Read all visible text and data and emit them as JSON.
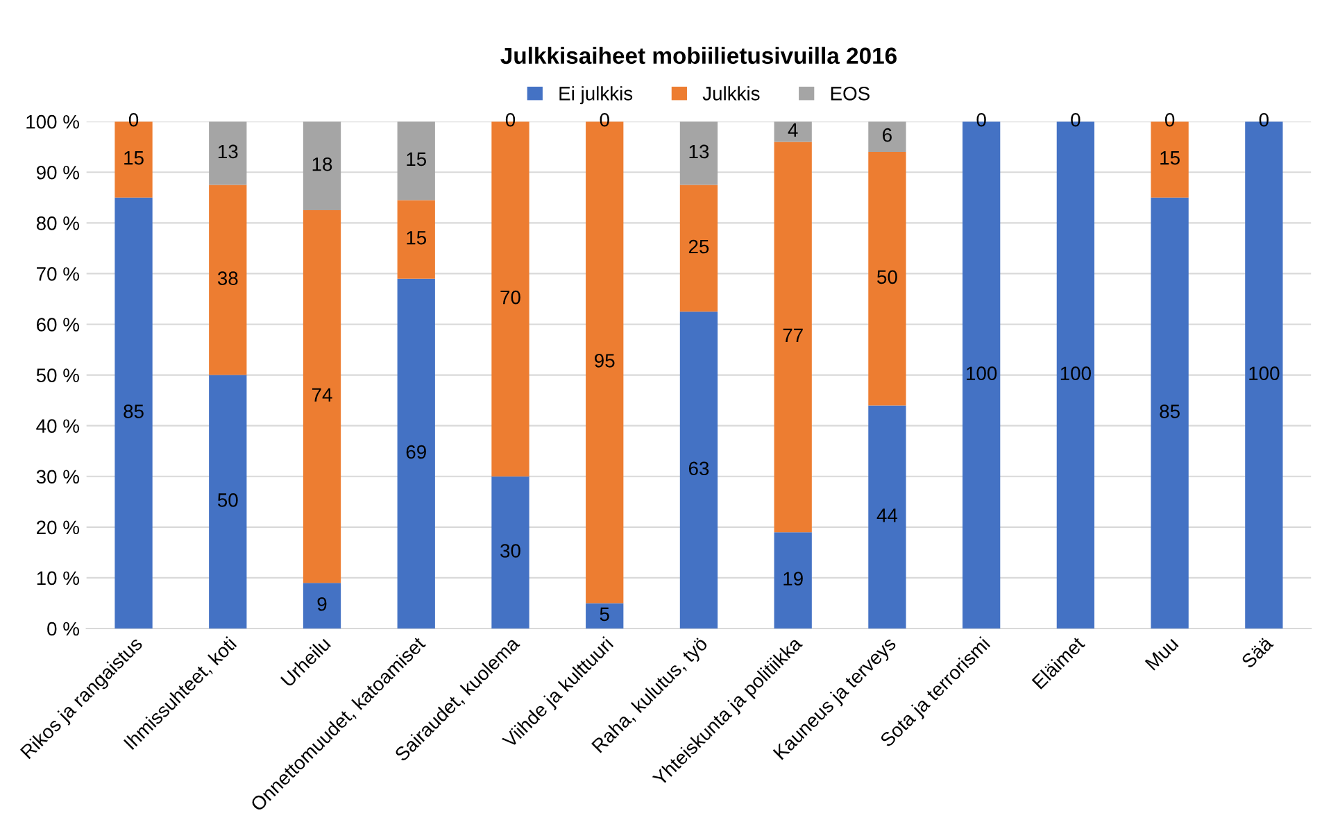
{
  "chart_data": {
    "type": "bar",
    "stacked": true,
    "title": "Julkkisaiheet mobiilietusivuilla 2016",
    "categories": [
      "Rikos ja rangaistus",
      "Ihmissuhteet, koti",
      "Urheilu",
      "Onnettomuudet, katoamiset",
      "Sairaudet, kuolema",
      "Viihde ja kulttuuri",
      "Raha, kulutus, työ",
      "Yhteiskunta ja politiikka",
      "Kauneus ja terveys",
      "Sota ja terrorismi",
      "Eläimet",
      "Muu",
      "Sää"
    ],
    "series": [
      {
        "name": "Ei julkkis",
        "color": "#4472c4",
        "values": [
          85,
          50,
          9,
          69,
          30,
          5,
          62.5,
          19,
          44,
          100,
          100,
          85,
          100
        ],
        "value_labels": [
          "85",
          "50",
          "9",
          "69",
          "30",
          "5",
          "63",
          "19",
          "44",
          "100",
          "100",
          "85",
          "100"
        ]
      },
      {
        "name": "Julkkis",
        "color": "#ed7d31",
        "values": [
          15,
          37.5,
          73.5,
          15.5,
          70,
          95,
          25,
          77,
          50,
          0,
          0,
          15,
          0
        ],
        "value_labels": [
          "15",
          "38",
          "74",
          "15",
          "70",
          "95",
          "25",
          "77",
          "50",
          "0",
          "0",
          "15",
          "0"
        ]
      },
      {
        "name": "EOS",
        "color": "#a5a5a5",
        "values": [
          0,
          12.5,
          17.5,
          15.5,
          0,
          0,
          12.5,
          4,
          6,
          0,
          0,
          0,
          0
        ],
        "value_labels": [
          "0",
          "13",
          "18",
          "15",
          "0",
          "0",
          "13",
          "4",
          "6",
          null,
          null,
          "0",
          null
        ]
      }
    ],
    "ylim": [
      0,
      100
    ],
    "yticks": [
      {
        "value": 0,
        "label": "0 %"
      },
      {
        "value": 10,
        "label": "10 %"
      },
      {
        "value": 20,
        "label": "20 %"
      },
      {
        "value": 30,
        "label": "30 %"
      },
      {
        "value": 40,
        "label": "40 %"
      },
      {
        "value": 50,
        "label": "50 %"
      },
      {
        "value": 60,
        "label": "60 %"
      },
      {
        "value": 70,
        "label": "70 %"
      },
      {
        "value": 80,
        "label": "80 %"
      },
      {
        "value": 90,
        "label": "90 %"
      },
      {
        "value": 100,
        "label": "100 %"
      }
    ],
    "grid": "y",
    "legend": "top"
  }
}
